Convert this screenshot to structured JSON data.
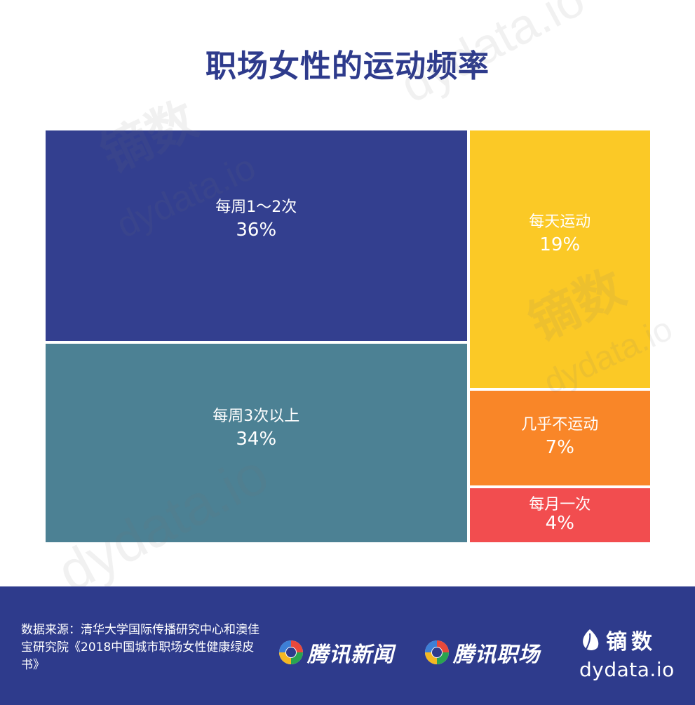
{
  "title": "职场女性的运动频率",
  "chart_data": {
    "type": "treemap",
    "title": "职场女性的运动频率",
    "unit": "%",
    "items": [
      {
        "label": "每周1～2次",
        "value": 36,
        "display": "36%",
        "color": "#333f8f"
      },
      {
        "label": "每周3次以上",
        "value": 34,
        "display": "34%",
        "color": "#4c8194"
      },
      {
        "label": "每天运动",
        "value": 19,
        "display": "19%",
        "color": "#fbc926"
      },
      {
        "label": "几乎不运动",
        "value": 7,
        "display": "7%",
        "color": "#f98628"
      },
      {
        "label": "每月一次",
        "value": 4,
        "display": "4%",
        "color": "#f24d4f"
      }
    ]
  },
  "footer": {
    "source": "数据来源：清华大学国际传播研究中心和澳佳宝研究院《2018中国城市职场女性健康绿皮书》",
    "logo_news": "腾讯新闻",
    "logo_career": "腾讯职场",
    "logo_dy_cn": "镝数",
    "logo_dy_en": "dydata.io"
  },
  "watermark": {
    "cn": "镝数",
    "en": "dydata.io"
  },
  "colors": {
    "title": "#2e3b8c",
    "footer_bg": "#2e3b8c"
  }
}
